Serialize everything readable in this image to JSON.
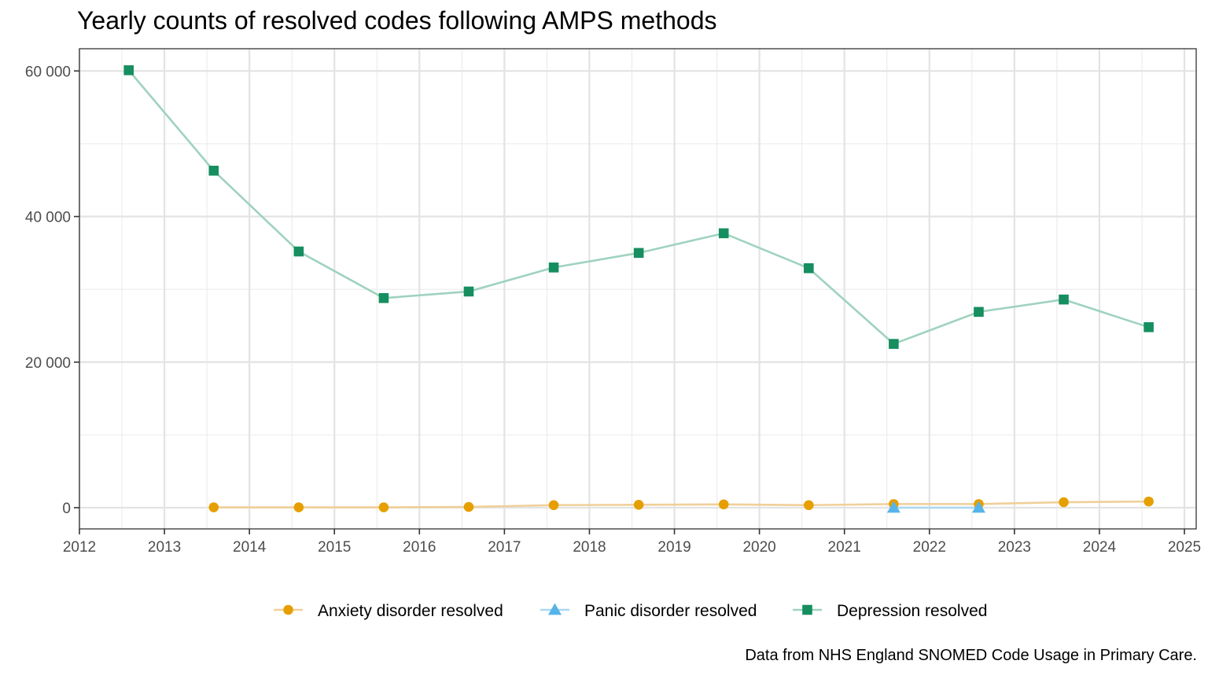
{
  "chart_data": {
    "type": "line",
    "title": "Yearly counts of resolved codes following AMPS methods",
    "caption": "Data from NHS England SNOMED Code Usage in Primary Care.",
    "xlabel": "",
    "ylabel": "",
    "xlim": [
      2012,
      2025
    ],
    "ylim": [
      -3000,
      63000
    ],
    "x_ticks": [
      2012,
      2013,
      2014,
      2015,
      2016,
      2017,
      2018,
      2019,
      2020,
      2021,
      2022,
      2023,
      2024,
      2025
    ],
    "x_tick_labels": [
      "2012",
      "2013",
      "2014",
      "2015",
      "2016",
      "2017",
      "2018",
      "2019",
      "2020",
      "2021",
      "2022",
      "2023",
      "2024",
      "2025"
    ],
    "y_ticks": [
      0,
      20000,
      40000,
      60000
    ],
    "y_tick_labels": [
      "0",
      "20 000",
      "40 000",
      "60 000"
    ],
    "grid": true,
    "legend_position": "bottom",
    "series": [
      {
        "name": "Anxiety disorder resolved",
        "color": "#E69F00",
        "line_color": "#F0CF99",
        "marker": "circle",
        "x": [
          2013.58,
          2014.58,
          2015.58,
          2016.58,
          2017.58,
          2018.58,
          2019.58,
          2020.58,
          2021.58,
          2022.58,
          2023.58,
          2024.58
        ],
        "values": [
          50,
          50,
          50,
          100,
          350,
          400,
          450,
          350,
          500,
          500,
          750,
          850
        ]
      },
      {
        "name": "Panic disorder resolved",
        "color": "#56B4E9",
        "line_color": "#A9D8F4",
        "marker": "triangle",
        "x": [
          2021.58,
          2022.58
        ],
        "values": [
          0,
          0
        ]
      },
      {
        "name": "Depression resolved",
        "color": "#168E5F",
        "line_color": "#9FD2BF",
        "marker": "square",
        "x": [
          2012.58,
          2013.58,
          2014.58,
          2015.58,
          2016.58,
          2017.58,
          2018.58,
          2019.58,
          2020.58,
          2021.58,
          2022.58,
          2023.58,
          2024.58
        ],
        "values": [
          60100,
          46300,
          35200,
          28800,
          29700,
          33000,
          35000,
          37700,
          32900,
          22500,
          26900,
          28600,
          24800
        ]
      }
    ]
  }
}
